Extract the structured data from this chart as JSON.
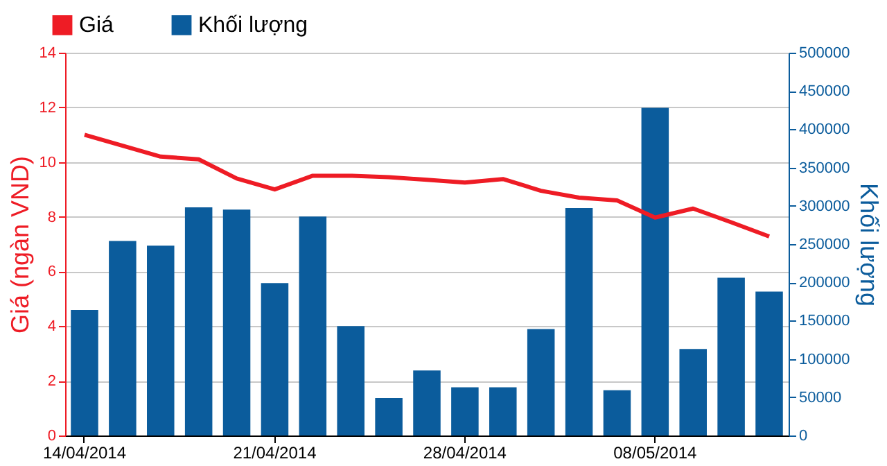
{
  "chart_data": {
    "type": "bar",
    "categories": [
      "14/04/2014",
      null,
      null,
      null,
      null,
      "21/04/2014",
      null,
      null,
      null,
      null,
      "28/04/2014",
      null,
      null,
      null,
      null,
      "08/05/2014",
      null,
      null,
      null
    ],
    "series": [
      {
        "name": "Khối lượng",
        "axis": "y2",
        "color": "#0b5c9c",
        "values": [
          164000,
          254000,
          248000,
          298000,
          295000,
          199000,
          286000,
          143000,
          49000,
          85000,
          63000,
          63000,
          139000,
          297000,
          59000,
          428000,
          113000,
          206000,
          188000
        ]
      },
      {
        "name": "Giá",
        "type": "line",
        "axis": "y",
        "color": "#ee1c25",
        "values": [
          11.0,
          10.6,
          10.2,
          10.1,
          9.4,
          9.0,
          9.5,
          9.5,
          9.45,
          9.35,
          9.25,
          9.38,
          8.95,
          8.7,
          8.6,
          7.97,
          8.3,
          7.8,
          7.28
        ]
      }
    ],
    "ylabel": "Giá (ngàn VND)",
    "y2label": "Khối lượng",
    "ylim": [
      0,
      14
    ],
    "yticks": [
      0,
      2,
      4,
      6,
      8,
      10,
      12,
      14
    ],
    "y2lim": [
      0,
      500000
    ],
    "y2ticks": [
      0,
      50000,
      100000,
      150000,
      200000,
      250000,
      300000,
      350000,
      400000,
      450000,
      500000
    ],
    "grid": "y",
    "legend": "top left"
  }
}
